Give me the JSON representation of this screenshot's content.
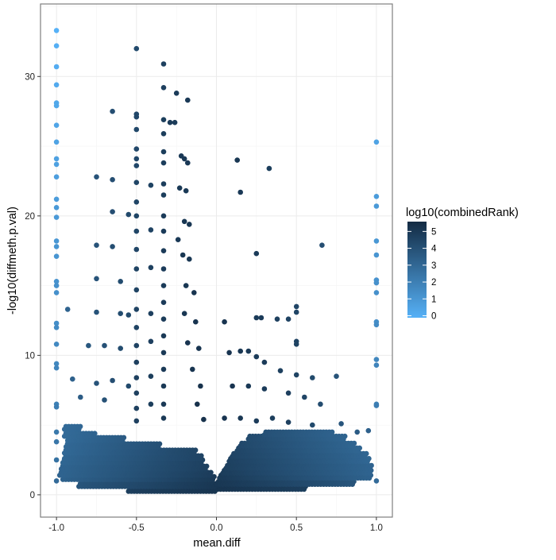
{
  "chart_data": {
    "type": "scatter",
    "title": "",
    "xlabel": "mean.diff",
    "ylabel": "-log10(diffmeth.p.val)",
    "xlim": [
      -1.1,
      1.1
    ],
    "ylim": [
      -1.6,
      35.2
    ],
    "x_ticks": [
      -1.0,
      -0.5,
      0.0,
      0.5,
      1.0
    ],
    "x_tick_labels": [
      "-1.0",
      "-0.5",
      "0.0",
      "0.5",
      "1.0"
    ],
    "y_ticks": [
      0,
      10,
      20,
      30
    ],
    "y_tick_labels": [
      "0",
      "10",
      "20",
      "30"
    ],
    "grid": true,
    "legend": {
      "title": "log10(combinedRank)",
      "placement": "right",
      "range": [
        0,
        5.7
      ],
      "ticks": [
        0,
        1,
        2,
        3,
        4,
        5
      ],
      "tick_labels": [
        "0",
        "1",
        "2",
        "3",
        "4",
        "5"
      ],
      "color_low": "#56B1F7",
      "color_high": "#132B43"
    },
    "dense_region_rows": [
      {
        "y": 0.3,
        "ranges": [
          [
            -0.55,
            0.55
          ]
        ],
        "rank_center": 5.3,
        "rank_edge": 4.6
      },
      {
        "y": 0.7,
        "ranges": [
          [
            -0.86,
            0.86
          ]
        ],
        "rank_center": 5.2,
        "rank_edge": 3.8
      },
      {
        "y": 1.1,
        "ranges": [
          [
            -0.96,
            -0.02
          ],
          [
            0.02,
            0.96
          ]
        ],
        "rank_center": 5.1,
        "rank_edge": 3.4
      },
      {
        "y": 1.5,
        "ranges": [
          [
            -0.98,
            -0.04
          ],
          [
            0.04,
            0.97
          ]
        ],
        "rank_center": 5.0,
        "rank_edge": 3.3
      },
      {
        "y": 1.9,
        "ranges": [
          [
            -0.97,
            -0.06
          ],
          [
            0.06,
            0.96
          ]
        ],
        "rank_center": 4.9,
        "rank_edge": 3.3
      },
      {
        "y": 2.3,
        "ranges": [
          [
            -0.96,
            -0.08
          ],
          [
            0.08,
            0.95
          ]
        ],
        "rank_center": 4.9,
        "rank_edge": 3.2
      },
      {
        "y": 2.7,
        "ranges": [
          [
            -0.95,
            -0.1
          ],
          [
            0.1,
            0.93
          ]
        ],
        "rank_center": 4.8,
        "rank_edge": 3.2
      },
      {
        "y": 3.1,
        "ranges": [
          [
            -0.95,
            -0.14
          ],
          [
            0.13,
            0.9
          ]
        ],
        "rank_center": 4.8,
        "rank_edge": 3.1
      },
      {
        "y": 3.5,
        "ranges": [
          [
            -0.94,
            -0.35
          ],
          [
            0.15,
            0.86
          ]
        ],
        "rank_center": 4.7,
        "rank_edge": 3.1
      },
      {
        "y": 3.9,
        "ranges": [
          [
            -0.93,
            -0.58
          ],
          [
            0.2,
            0.8
          ]
        ],
        "rank_center": 4.7,
        "rank_edge": 3.0
      },
      {
        "y": 4.3,
        "ranges": [
          [
            -0.95,
            -0.76
          ],
          [
            0.3,
            0.72
          ]
        ],
        "rank_center": 4.6,
        "rank_edge": 3.0
      },
      {
        "y": 4.8,
        "ranges": [
          [
            -0.95,
            -0.86
          ]
        ],
        "rank_center": 4.5,
        "rank_edge": 3.0
      }
    ],
    "points": [
      [
        -1,
        33.3,
        0
      ],
      [
        -1,
        32.2,
        0.1
      ],
      [
        -1,
        30.7,
        0.2
      ],
      [
        -1,
        29.4,
        0.3
      ],
      [
        -1,
        28.1,
        0.4
      ],
      [
        -1,
        27.9,
        0.4
      ],
      [
        -1,
        26.5,
        0.5
      ],
      [
        -1,
        25.3,
        0.6
      ],
      [
        -1,
        24.1,
        0.7
      ],
      [
        -1,
        23.7,
        0.7
      ],
      [
        -1,
        22.8,
        0.8
      ],
      [
        -1,
        21.2,
        0.9
      ],
      [
        -1,
        20.6,
        1
      ],
      [
        -1,
        19.9,
        1
      ],
      [
        -1,
        18.2,
        1.1
      ],
      [
        -1,
        17.8,
        1.2
      ],
      [
        -1,
        17.1,
        1.2
      ],
      [
        -1,
        15.3,
        1.3
      ],
      [
        -1,
        15.0,
        1.4
      ],
      [
        -1,
        14.5,
        1.4
      ],
      [
        -1,
        12.3,
        1.5
      ],
      [
        -1,
        12.0,
        1.6
      ],
      [
        -1,
        10.8,
        1.7
      ],
      [
        -1,
        9.4,
        1.8
      ],
      [
        -1,
        9.1,
        1.9
      ],
      [
        -1,
        6.5,
        2.1
      ],
      [
        -1,
        6.3,
        2.2
      ],
      [
        -1,
        4.5,
        2.4
      ],
      [
        -1,
        3.8,
        2.5
      ],
      [
        -1,
        2.5,
        2.7
      ],
      [
        -1,
        1.0,
        3
      ],
      [
        1,
        25.3,
        0.6
      ],
      [
        1,
        21.4,
        0.9
      ],
      [
        1,
        20.7,
        1
      ],
      [
        1,
        18.2,
        1.1
      ],
      [
        1,
        17.2,
        1.2
      ],
      [
        1,
        15.4,
        1.3
      ],
      [
        1,
        15.2,
        1.4
      ],
      [
        1,
        14.5,
        1.4
      ],
      [
        1,
        12.4,
        1.5
      ],
      [
        1,
        12.2,
        1.6
      ],
      [
        1,
        9.7,
        1.8
      ],
      [
        1,
        9.3,
        1.9
      ],
      [
        1,
        6.5,
        2.1
      ],
      [
        1,
        6.4,
        2.2
      ],
      [
        1,
        1.0,
        3
      ],
      [
        -0.5,
        32.0,
        4.4
      ],
      [
        -0.5,
        27.3,
        4.5
      ],
      [
        -0.5,
        27.1,
        4.5
      ],
      [
        -0.5,
        26.2,
        4.5
      ],
      [
        -0.5,
        24.8,
        4.5
      ],
      [
        -0.5,
        24.1,
        4.5
      ],
      [
        -0.5,
        23.6,
        4.5
      ],
      [
        -0.5,
        22.4,
        4.6
      ],
      [
        -0.5,
        21.0,
        4.6
      ],
      [
        -0.5,
        20.0,
        4.6
      ],
      [
        -0.5,
        18.9,
        4.6
      ],
      [
        -0.5,
        17.6,
        4.6
      ],
      [
        -0.5,
        16.2,
        4.7
      ],
      [
        -0.5,
        14.7,
        4.7
      ],
      [
        -0.5,
        13.3,
        4.7
      ],
      [
        -0.5,
        12.0,
        4.7
      ],
      [
        -0.5,
        10.7,
        4.7
      ],
      [
        -0.5,
        9.5,
        4.8
      ],
      [
        -0.5,
        8.4,
        4.8
      ],
      [
        -0.5,
        7.3,
        4.8
      ],
      [
        -0.5,
        6.2,
        4.8
      ],
      [
        -0.5,
        5.3,
        4.8
      ],
      [
        -0.33,
        30.9,
        4.8
      ],
      [
        -0.33,
        29.2,
        4.8
      ],
      [
        -0.33,
        26.9,
        4.9
      ],
      [
        -0.33,
        25.9,
        4.9
      ],
      [
        -0.33,
        24.6,
        4.9
      ],
      [
        -0.33,
        23.8,
        4.9
      ],
      [
        -0.33,
        22.3,
        4.9
      ],
      [
        -0.33,
        21.5,
        4.9
      ],
      [
        -0.33,
        20.0,
        5
      ],
      [
        -0.33,
        18.9,
        5
      ],
      [
        -0.33,
        17.5,
        5
      ],
      [
        -0.33,
        16.2,
        5
      ],
      [
        -0.33,
        15.0,
        5
      ],
      [
        -0.33,
        13.8,
        5
      ],
      [
        -0.33,
        12.6,
        5
      ],
      [
        -0.33,
        11.4,
        5.1
      ],
      [
        -0.33,
        10.2,
        5.1
      ],
      [
        -0.33,
        9.0,
        5.1
      ],
      [
        -0.33,
        7.8,
        5.1
      ],
      [
        -0.33,
        6.5,
        5.1
      ],
      [
        -0.33,
        5.5,
        5.1
      ],
      [
        -0.41,
        22.2,
        4.7
      ],
      [
        -0.41,
        19.0,
        4.7
      ],
      [
        -0.41,
        16.3,
        4.8
      ],
      [
        -0.41,
        13.0,
        4.8
      ],
      [
        -0.41,
        11.0,
        4.8
      ],
      [
        -0.41,
        8.5,
        4.9
      ],
      [
        -0.41,
        6.5,
        4.9
      ],
      [
        -0.25,
        28.8,
        5
      ],
      [
        -0.18,
        28.3,
        5.1
      ],
      [
        -0.29,
        26.7,
        5
      ],
      [
        -0.26,
        26.7,
        5
      ],
      [
        -0.22,
        24.3,
        5.1
      ],
      [
        -0.2,
        24.1,
        5.1
      ],
      [
        -0.18,
        23.8,
        5.1
      ],
      [
        -0.23,
        22.0,
        5.1
      ],
      [
        -0.19,
        21.8,
        5.1
      ],
      [
        -0.2,
        19.6,
        5.2
      ],
      [
        -0.17,
        19.4,
        5.2
      ],
      [
        -0.24,
        18.3,
        5.1
      ],
      [
        -0.21,
        17.2,
        5.2
      ],
      [
        -0.17,
        16.9,
        5.2
      ],
      [
        -0.19,
        15.0,
        5.2
      ],
      [
        -0.14,
        14.5,
        5.3
      ],
      [
        -0.2,
        13.0,
        5.2
      ],
      [
        -0.13,
        12.4,
        5.3
      ],
      [
        -0.18,
        10.9,
        5.3
      ],
      [
        -0.11,
        10.5,
        5.3
      ],
      [
        -0.15,
        9.0,
        5.3
      ],
      [
        -0.1,
        7.8,
        5.4
      ],
      [
        -0.12,
        6.5,
        5.4
      ],
      [
        -0.08,
        5.4,
        5.4
      ],
      [
        -0.65,
        27.5,
        4.2
      ],
      [
        -0.75,
        22.8,
        4.0
      ],
      [
        -0.65,
        22.6,
        4.2
      ],
      [
        -0.65,
        20.3,
        4.2
      ],
      [
        -0.55,
        20.1,
        4.4
      ],
      [
        -0.75,
        17.9,
        4.0
      ],
      [
        -0.65,
        17.8,
        4.2
      ],
      [
        -0.75,
        15.5,
        4.0
      ],
      [
        -0.6,
        15.3,
        4.3
      ],
      [
        -0.93,
        13.3,
        3.3
      ],
      [
        -0.6,
        13.0,
        4.3
      ],
      [
        -0.75,
        13.1,
        4.0
      ],
      [
        -0.55,
        12.9,
        4.4
      ],
      [
        -0.8,
        10.7,
        3.8
      ],
      [
        -0.7,
        10.7,
        4.1
      ],
      [
        -0.6,
        10.5,
        4.3
      ],
      [
        -0.9,
        8.3,
        3.4
      ],
      [
        -0.75,
        8.0,
        4.0
      ],
      [
        -0.65,
        8.2,
        4.2
      ],
      [
        -0.55,
        7.8,
        4.4
      ],
      [
        -0.85,
        7.0,
        3.6
      ],
      [
        -0.7,
        6.8,
        4.1
      ],
      [
        0.13,
        24.0,
        5.2
      ],
      [
        0.33,
        23.4,
        4.9
      ],
      [
        0.15,
        21.7,
        5.1
      ],
      [
        0.66,
        17.9,
        4.2
      ],
      [
        0.25,
        17.3,
        5
      ],
      [
        0.5,
        13.5,
        4.6
      ],
      [
        0.5,
        13.1,
        4.6
      ],
      [
        0.25,
        12.7,
        5
      ],
      [
        0.28,
        12.7,
        5
      ],
      [
        0.38,
        12.6,
        4.8
      ],
      [
        0.05,
        12.4,
        5.3
      ],
      [
        0.45,
        12.6,
        4.7
      ],
      [
        0.5,
        11.0,
        4.7
      ],
      [
        0.5,
        10.8,
        4.7
      ],
      [
        0.08,
        10.2,
        5.3
      ],
      [
        0.15,
        10.3,
        5.2
      ],
      [
        0.2,
        10.3,
        5.1
      ],
      [
        0.25,
        9.9,
        5
      ],
      [
        0.3,
        9.5,
        5
      ],
      [
        0.4,
        8.9,
        4.8
      ],
      [
        0.5,
        8.6,
        4.7
      ],
      [
        0.6,
        8.4,
        4.4
      ],
      [
        0.75,
        8.5,
        4.0
      ],
      [
        0.1,
        7.8,
        5.3
      ],
      [
        0.2,
        7.8,
        5.1
      ],
      [
        0.3,
        7.6,
        5
      ],
      [
        0.45,
        7.3,
        4.8
      ],
      [
        0.55,
        7.0,
        4.6
      ],
      [
        0.65,
        6.5,
        4.3
      ],
      [
        0.05,
        5.5,
        5.3
      ],
      [
        0.15,
        5.5,
        5.2
      ],
      [
        0.25,
        5.3,
        5
      ],
      [
        0.35,
        5.5,
        4.9
      ],
      [
        0.45,
        5.2,
        4.8
      ],
      [
        0.6,
        5.0,
        4.4
      ],
      [
        0.78,
        5.1,
        3.9
      ],
      [
        0.88,
        4.5,
        3.6
      ],
      [
        0.95,
        4.6,
        3.4
      ]
    ]
  }
}
